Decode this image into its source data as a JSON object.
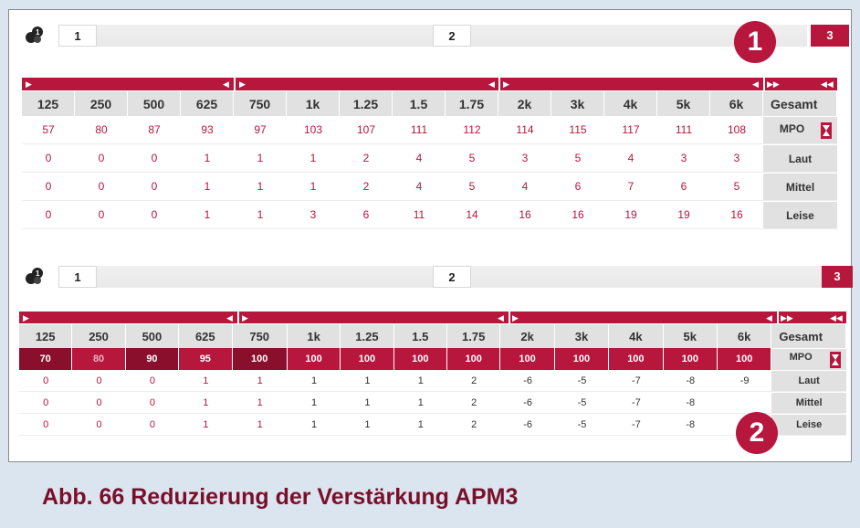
{
  "colors": {
    "accent": "#b7163d",
    "accent_dark": "#8a0f2c",
    "page_bg": "#dbe5ef",
    "caption": "#7a0f2a"
  },
  "icons": {
    "program_icon": "numbered-balls-icon",
    "band_arrow_left": "caret-right-icon",
    "band_arrow_right": "caret-left-icon",
    "mpo": "hourglass-icon"
  },
  "panel1": {
    "steps": [
      "1",
      "2",
      "3"
    ],
    "headers": [
      "125",
      "250",
      "500",
      "625",
      "750",
      "1k",
      "1.25",
      "1.5",
      "1.75",
      "2k",
      "3k",
      "4k",
      "5k",
      "6k",
      "Gesamt"
    ],
    "rows": [
      {
        "label": "MPO",
        "values": [
          "57",
          "80",
          "87",
          "93",
          "97",
          "103",
          "107",
          "111",
          "112",
          "114",
          "115",
          "117",
          "111",
          "108"
        ]
      },
      {
        "label": "Laut",
        "values": [
          "0",
          "0",
          "0",
          "1",
          "1",
          "1",
          "2",
          "4",
          "5",
          "3",
          "5",
          "4",
          "3",
          "3"
        ]
      },
      {
        "label": "Mittel",
        "values": [
          "0",
          "0",
          "0",
          "1",
          "1",
          "1",
          "2",
          "4",
          "5",
          "4",
          "6",
          "7",
          "6",
          "5"
        ]
      },
      {
        "label": "Leise",
        "values": [
          "0",
          "0",
          "0",
          "1",
          "1",
          "3",
          "6",
          "11",
          "14",
          "16",
          "16",
          "19",
          "19",
          "16"
        ]
      }
    ]
  },
  "panel2": {
    "steps": [
      "1",
      "2",
      "3"
    ],
    "headers": [
      "125",
      "250",
      "500",
      "625",
      "750",
      "1k",
      "1.25",
      "1.5",
      "1.75",
      "2k",
      "3k",
      "4k",
      "5k",
      "6k",
      "Gesamt"
    ],
    "rows": [
      {
        "label": "MPO",
        "values": [
          "70",
          "80",
          "90",
          "95",
          "100",
          "100",
          "100",
          "100",
          "100",
          "100",
          "100",
          "100",
          "100",
          "100"
        ]
      },
      {
        "label": "Laut",
        "values": [
          "0",
          "0",
          "0",
          "1",
          "1",
          "1",
          "1",
          "1",
          "2",
          "-6",
          "-5",
          "-7",
          "-8",
          "-9"
        ]
      },
      {
        "label": "Mittel",
        "values": [
          "0",
          "0",
          "0",
          "1",
          "1",
          "1",
          "1",
          "1",
          "2",
          "-6",
          "-5",
          "-7",
          "-8",
          ""
        ]
      },
      {
        "label": "Leise",
        "values": [
          "0",
          "0",
          "0",
          "1",
          "1",
          "1",
          "1",
          "1",
          "2",
          "-6",
          "-5",
          "-7",
          "-8",
          ""
        ]
      }
    ]
  },
  "callouts": [
    "1",
    "2"
  ],
  "caption": "Abb. 66 Reduzierung der Verstärkung APM3"
}
